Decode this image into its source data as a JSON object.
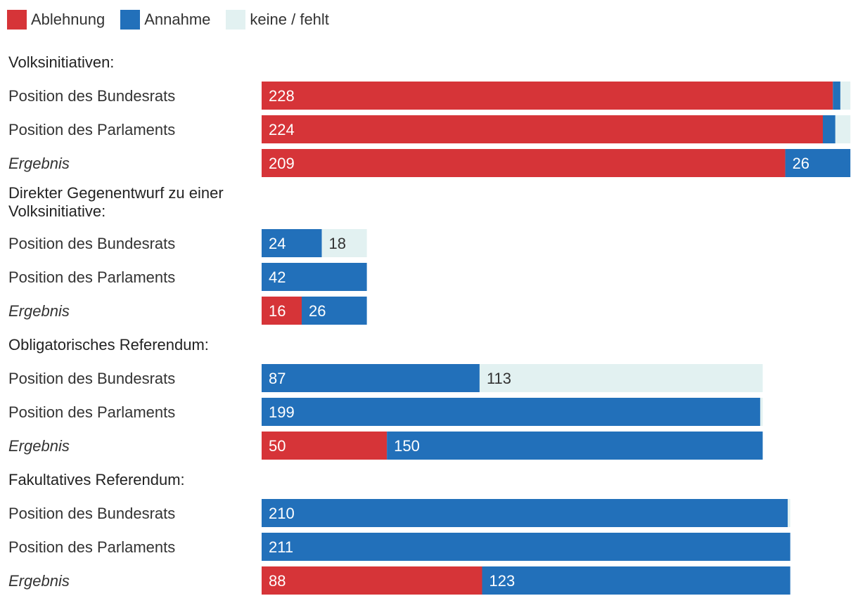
{
  "colors": {
    "ablehnung": "#d63438",
    "annahme": "#2270ba",
    "keine": "#e2f1f1"
  },
  "legend": [
    {
      "key": "ablehnung",
      "label": "Ablehnung",
      "color": "#d63438"
    },
    {
      "key": "annahme",
      "label": "Annahme",
      "color": "#2270ba"
    },
    {
      "key": "keine",
      "label": "keine / fehlt",
      "color": "#e2f1f1"
    }
  ],
  "chart_data": {
    "type": "bar",
    "orientation": "horizontal",
    "stacked": true,
    "series_names": [
      "Ablehnung",
      "Annahme",
      "keine / fehlt"
    ],
    "groups": [
      {
        "title": [
          "Volksinitiativen:"
        ],
        "rows": [
          {
            "label": "Position des Bundesrats",
            "italic": false,
            "values": [
              228,
              3,
              4
            ],
            "shown": [
              "228",
              "",
              ""
            ]
          },
          {
            "label": "Position des Parlaments",
            "italic": false,
            "values": [
              224,
              5,
              6
            ],
            "shown": [
              "224",
              "",
              ""
            ]
          },
          {
            "label": "Ergebnis",
            "italic": true,
            "values": [
              209,
              26,
              0
            ],
            "shown": [
              "209",
              "26",
              ""
            ]
          }
        ]
      },
      {
        "title": [
          "Direkter Gegenentwurf zu einer",
          "Volksinitiative:"
        ],
        "rows": [
          {
            "label": "Position des Bundesrats",
            "italic": false,
            "values": [
              0,
              24,
              18
            ],
            "shown": [
              "",
              "24",
              "18"
            ]
          },
          {
            "label": "Position des Parlaments",
            "italic": false,
            "values": [
              0,
              42,
              0
            ],
            "shown": [
              "",
              "42",
              ""
            ]
          },
          {
            "label": "Ergebnis",
            "italic": true,
            "values": [
              16,
              26,
              0
            ],
            "shown": [
              "16",
              "26",
              ""
            ]
          }
        ]
      },
      {
        "title": [
          "Obligatorisches Referendum:"
        ],
        "rows": [
          {
            "label": "Position des Bundesrats",
            "italic": false,
            "values": [
              0,
              87,
              113
            ],
            "shown": [
              "",
              "87",
              "113"
            ]
          },
          {
            "label": "Position des Parlaments",
            "italic": false,
            "values": [
              0,
              199,
              1
            ],
            "shown": [
              "",
              "199",
              ""
            ]
          },
          {
            "label": "Ergebnis",
            "italic": true,
            "values": [
              50,
              150,
              0
            ],
            "shown": [
              "50",
              "150",
              ""
            ]
          }
        ]
      },
      {
        "title": [
          "Fakultatives Referendum:"
        ],
        "rows": [
          {
            "label": "Position des Bundesrats",
            "italic": false,
            "values": [
              0,
              210,
              1
            ],
            "shown": [
              "",
              "210",
              ""
            ]
          },
          {
            "label": "Position des Parlaments",
            "italic": false,
            "values": [
              0,
              211,
              0
            ],
            "shown": [
              "",
              "211",
              ""
            ]
          },
          {
            "label": "Ergebnis",
            "italic": true,
            "values": [
              88,
              123,
              0
            ],
            "shown": [
              "88",
              "123",
              ""
            ]
          }
        ]
      }
    ]
  }
}
